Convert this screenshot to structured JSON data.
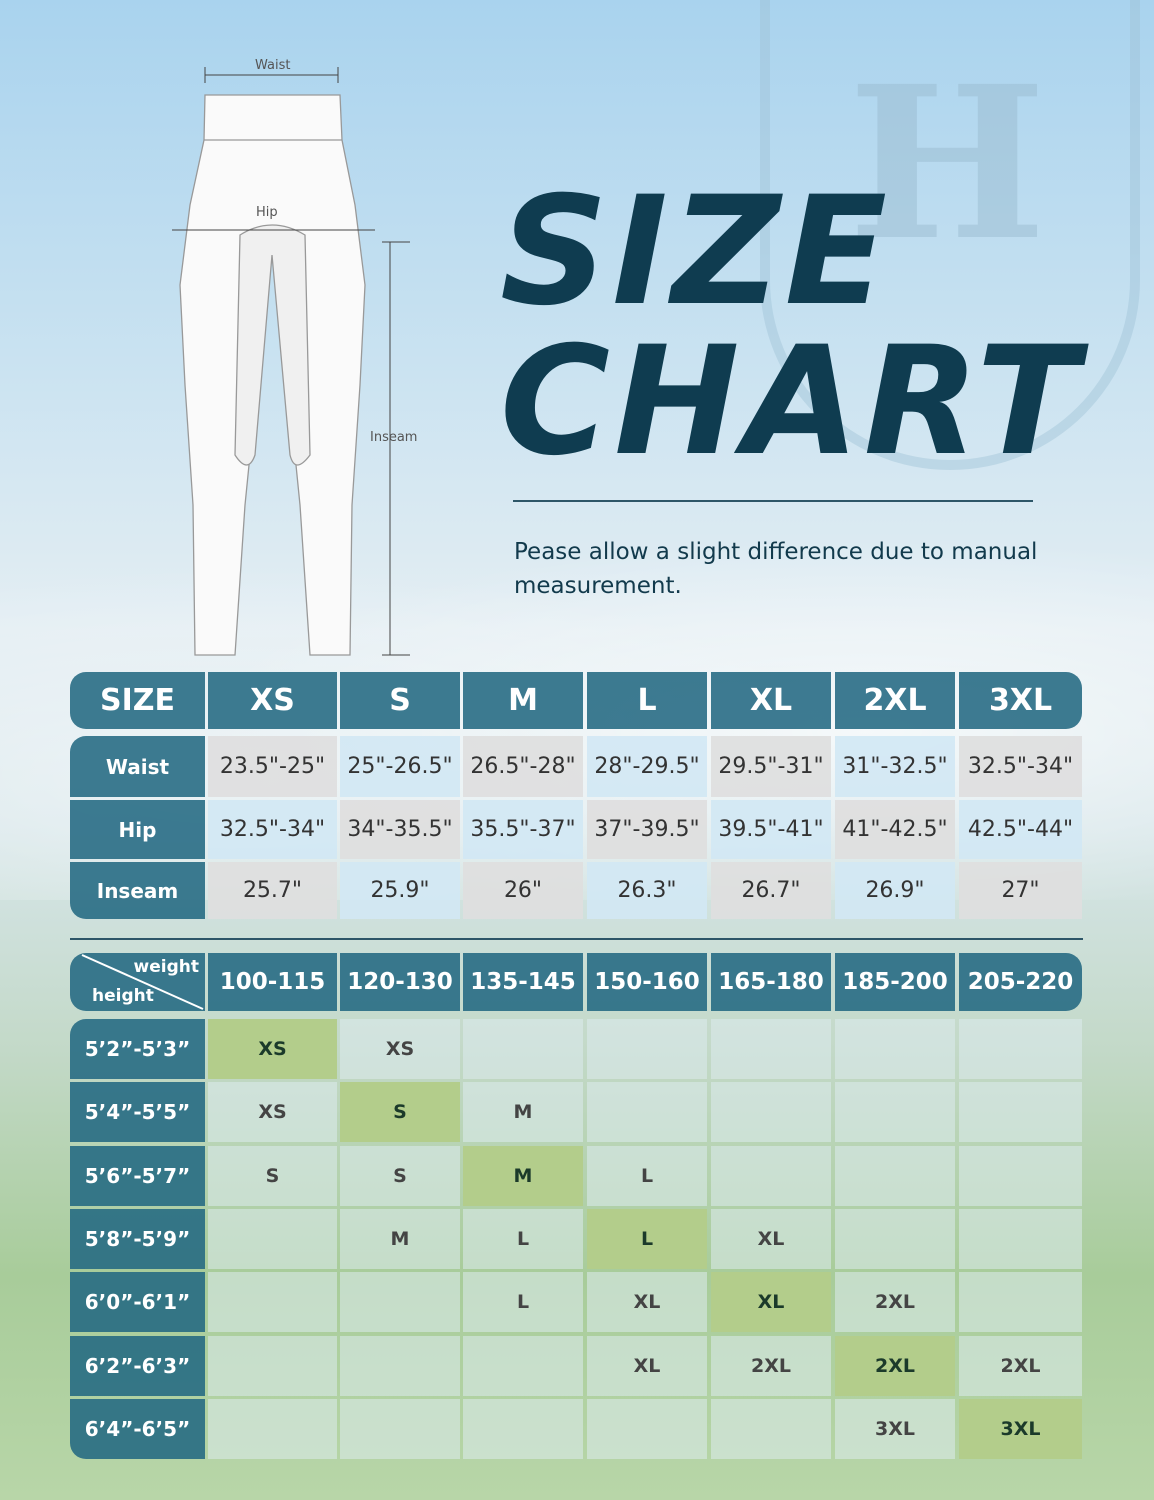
{
  "logo": {
    "letter": "H"
  },
  "title": {
    "line1": "SIZE",
    "line2": "CHART"
  },
  "note": "Pease allow a slight difference due to manual measurement.",
  "diagram": {
    "waist": "Waist",
    "hip": "Hip",
    "inseam": "Inseam"
  },
  "colors": {
    "header": "#236982",
    "highlight": "#b3cd8b",
    "title": "#0f3c50"
  },
  "size_table": {
    "corner": "SIZE",
    "sizes": [
      "XS",
      "S",
      "M",
      "L",
      "XL",
      "2XL",
      "3XL"
    ],
    "rows": [
      {
        "label": "Waist",
        "values": [
          "23.5\"-25\"",
          "25\"-26.5\"",
          "26.5\"-28\"",
          "28\"-29.5\"",
          "29.5\"-31\"",
          "31\"-32.5\"",
          "32.5\"-34\""
        ]
      },
      {
        "label": "Hip",
        "values": [
          "32.5\"-34\"",
          "34\"-35.5\"",
          "35.5\"-37\"",
          "37\"-39.5\"",
          "39.5\"-41\"",
          "41\"-42.5\"",
          "42.5\"-44\""
        ]
      },
      {
        "label": "Inseam",
        "values": [
          "25.7\"",
          "25.9\"",
          "26\"",
          "26.3\"",
          "26.7\"",
          "26.9\"",
          "27\""
        ]
      }
    ]
  },
  "fit_table": {
    "corner_weight": "weight",
    "corner_height": "height",
    "weights": [
      "100-115",
      "120-130",
      "135-145",
      "150-160",
      "165-180",
      "185-200",
      "205-220"
    ],
    "rows": [
      {
        "height": "5’2”-5’3”",
        "values": [
          "XS",
          "XS",
          "",
          "",
          "",
          "",
          ""
        ],
        "highlight": 0
      },
      {
        "height": "5’4”-5’5”",
        "values": [
          "XS",
          "S",
          "M",
          "",
          "",
          "",
          ""
        ],
        "highlight": 1
      },
      {
        "height": "5’6”-5’7”",
        "values": [
          "S",
          "S",
          "M",
          "L",
          "",
          "",
          ""
        ],
        "highlight": 2
      },
      {
        "height": "5’8”-5’9”",
        "values": [
          "",
          "M",
          "L",
          "L",
          "XL",
          "",
          ""
        ],
        "highlight": 3
      },
      {
        "height": "6’0”-6’1”",
        "values": [
          "",
          "",
          "L",
          "XL",
          "XL",
          "2XL",
          ""
        ],
        "highlight": 4
      },
      {
        "height": "6’2”-6’3”",
        "values": [
          "",
          "",
          "",
          "XL",
          "2XL",
          "2XL",
          "2XL"
        ],
        "highlight": 5
      },
      {
        "height": "6’4”-6’5”",
        "values": [
          "",
          "",
          "",
          "",
          "",
          "3XL",
          "3XL"
        ],
        "highlight": 6
      }
    ]
  }
}
